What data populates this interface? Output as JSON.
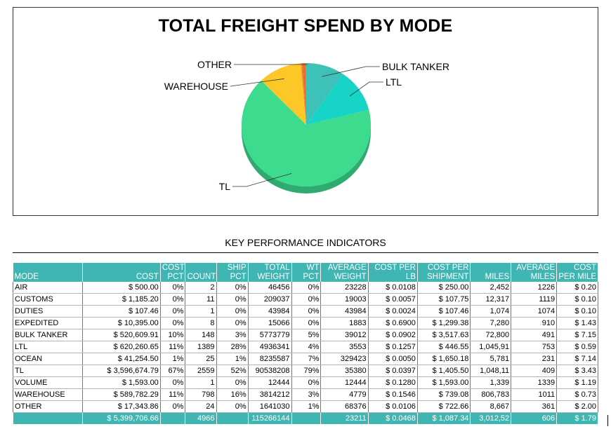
{
  "chart_data": {
    "type": "pie",
    "title": "TOTAL FREIGHT SPEND BY MODE",
    "slices": [
      {
        "label": "BULK TANKER",
        "value": 520609.91,
        "color": "#3ec1b8",
        "show_label": true
      },
      {
        "label": "LTL",
        "value": 620260.65,
        "color": "#16d4c6",
        "show_label": true
      },
      {
        "label": "TL",
        "value": 3596674.79,
        "color": "#3ddb8e",
        "show_label": true
      },
      {
        "label": "WAREHOUSE",
        "value": 589782.29,
        "color": "#fcc727",
        "show_label": true
      },
      {
        "label": "OTHER",
        "value": 17343.86,
        "color": "#f7882b",
        "show_label": true
      },
      {
        "label": "AIR",
        "value": 500.0,
        "color": "#e84a3a",
        "show_label": false
      },
      {
        "label": "CUSTOMS",
        "value": 1185.2,
        "color": "#d83a2f",
        "show_label": false
      },
      {
        "label": "DUTIES",
        "value": 107.46,
        "color": "#c43328",
        "show_label": false
      },
      {
        "label": "EXPEDITED",
        "value": 10395.0,
        "color": "#e5582e",
        "show_label": false
      },
      {
        "label": "OCEAN",
        "value": 41254.5,
        "color": "#ec6a2b",
        "show_label": false
      },
      {
        "label": "VOLUME",
        "value": 1593.0,
        "color": "#f07b2c",
        "show_label": false
      }
    ]
  },
  "kpi": {
    "title": "KEY PERFORMANCE INDICATORS",
    "headers": [
      [
        "",
        "MODE"
      ],
      [
        "",
        "COST"
      ],
      [
        "COST",
        "PCT"
      ],
      [
        "",
        "COUNT"
      ],
      [
        "SHIP",
        "PCT"
      ],
      [
        "TOTAL",
        "WEIGHT"
      ],
      [
        "WT",
        "PCT"
      ],
      [
        "AVERAGE",
        "WEIGHT"
      ],
      [
        "COST PER",
        "LB"
      ],
      [
        "COST PER",
        "SHIPMENT"
      ],
      [
        "",
        "MILES"
      ],
      [
        "AVERAGE",
        "MILES"
      ],
      [
        "COST",
        "PER MILE"
      ]
    ],
    "rows": [
      [
        "AIR",
        "$ 500.00",
        "0%",
        "2",
        "0%",
        "46456",
        "0%",
        "23228",
        "$ 0.0108",
        "$ 250.00",
        "2,452",
        "1226",
        "$ 0.20"
      ],
      [
        "CUSTOMS",
        "$ 1,185.20",
        "0%",
        "11",
        "0%",
        "209037",
        "0%",
        "19003",
        "$ 0.0057",
        "$ 107.75",
        "12,317",
        "1119",
        "$ 0.10"
      ],
      [
        "DUTIES",
        "$ 107.46",
        "0%",
        "1",
        "0%",
        "43984",
        "0%",
        "43984",
        "$ 0.0024",
        "$ 107.46",
        "1,074",
        "1074",
        "$ 0.10"
      ],
      [
        "EXPEDITED",
        "$ 10,395.00",
        "0%",
        "8",
        "0%",
        "15066",
        "0%",
        "1883",
        "$ 0.6900",
        "$ 1,299.38",
        "7,280",
        "910",
        "$ 1.43"
      ],
      [
        "BULK TANKER",
        "$ 520,609.91",
        "10%",
        "148",
        "3%",
        "5773779",
        "5%",
        "39012",
        "$ 0.0902",
        "$ 3,517.63",
        "72,800",
        "491",
        "$ 7.15"
      ],
      [
        "LTL",
        "$ 620,260.65",
        "11%",
        "1389",
        "28%",
        "4936341",
        "4%",
        "3553",
        "$ 0.1257",
        "$ 446.55",
        "1,045,91",
        "753",
        "$ 0.59"
      ],
      [
        "OCEAN",
        "$ 41,254.50",
        "1%",
        "25",
        "1%",
        "8235587",
        "7%",
        "329423",
        "$ 0.0050",
        "$ 1,650.18",
        "5,781",
        "231",
        "$ 7.14"
      ],
      [
        "TL",
        "$ 3,596,674.79",
        "67%",
        "2559",
        "52%",
        "90538208",
        "79%",
        "35380",
        "$ 0.0397",
        "$ 1,405.50",
        "1,048,11",
        "409",
        "$ 3.43"
      ],
      [
        "VOLUME",
        "$ 1,593.00",
        "0%",
        "1",
        "0%",
        "12444",
        "0%",
        "12444",
        "$ 0.1280",
        "$ 1,593.00",
        "1,339",
        "1339",
        "$ 1.19"
      ],
      [
        "WAREHOUSE",
        "$ 589,782.29",
        "11%",
        "798",
        "16%",
        "3814212",
        "3%",
        "4779",
        "$ 0.1546",
        "$ 739.08",
        "806,783",
        "1011",
        "$ 0.73"
      ],
      [
        "OTHER",
        "$ 17,343.86",
        "0%",
        "24",
        "0%",
        "1641030",
        "1%",
        "68376",
        "$ 0.0106",
        "$ 722.66",
        "8,667",
        "361",
        "$ 2.00"
      ]
    ],
    "total": [
      "",
      "$ 5,399,706.66",
      "",
      "4966",
      "",
      "115266144",
      "",
      "23211",
      "$ 0.0468",
      "$ 1,087.34",
      "3,012,52",
      "606",
      "$ 1.79"
    ]
  }
}
